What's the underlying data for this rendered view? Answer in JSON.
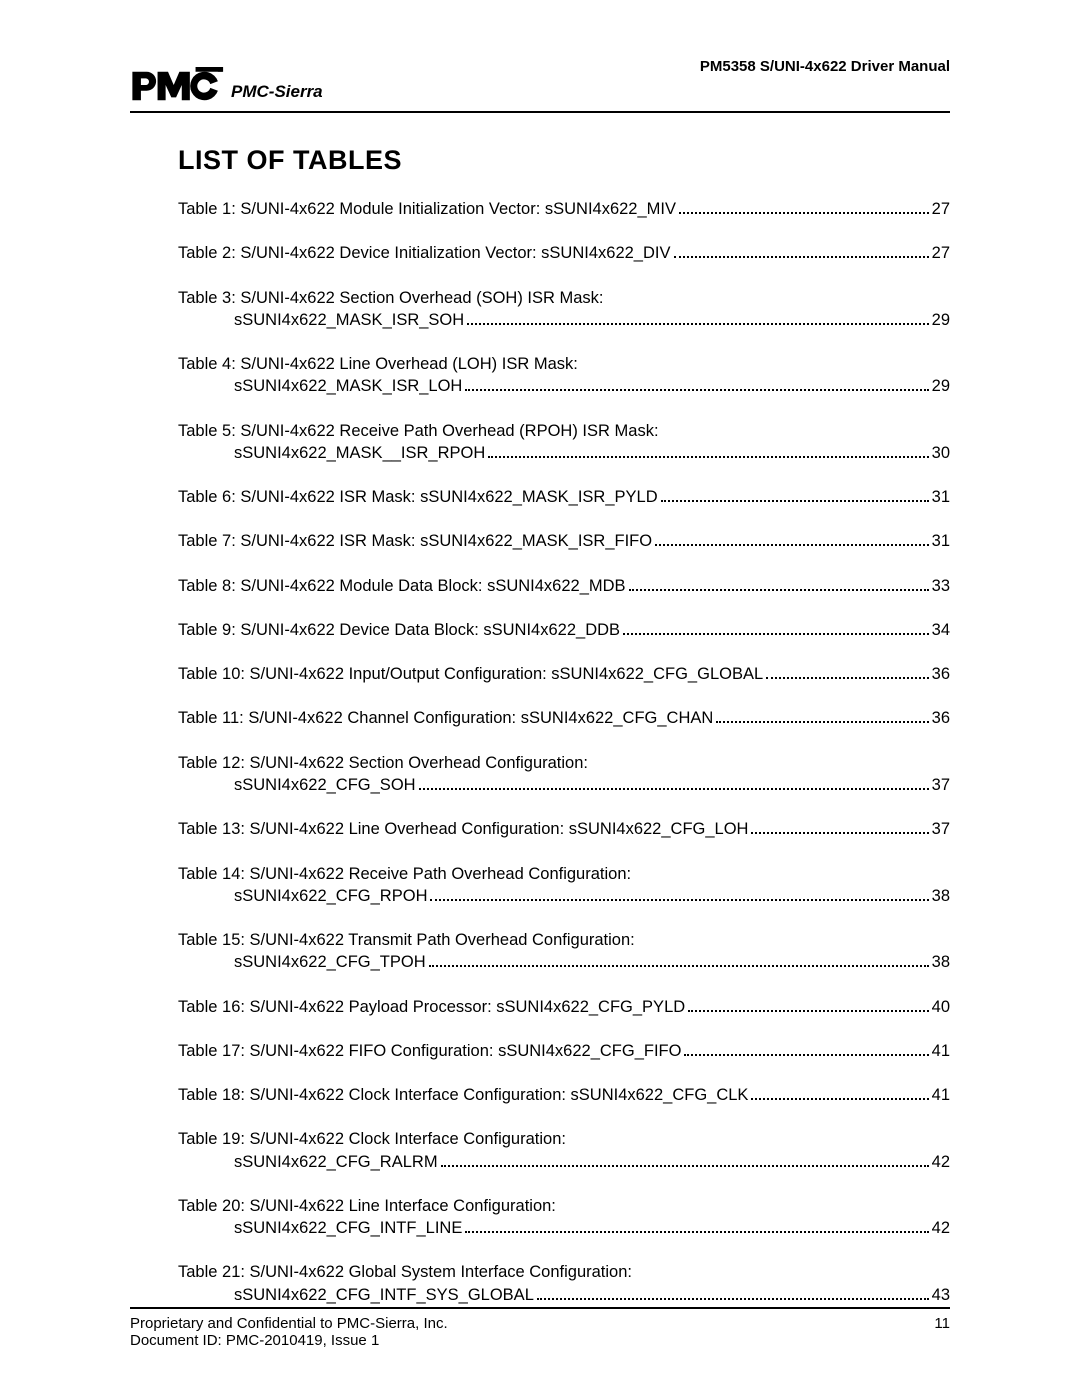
{
  "header": {
    "doc_title": "PM5358 S/UNI-4x622 Driver Manual",
    "logo_sub": "PMC-Sierra"
  },
  "title": "LIST OF TABLES",
  "toc": [
    {
      "label": "Table 1: S/UNI-4x622 Module Initialization Vector: sSUNI4x622_MIV",
      "page": "27"
    },
    {
      "label": "Table 2: S/UNI-4x622 Device Initialization Vector: sSUNI4x622_DIV",
      "page": "27"
    },
    {
      "label": "Table 3: S/UNI-4x622 Section Overhead (SOH) ISR Mask:",
      "sub": "sSUNI4x622_MASK_ISR_SOH",
      "page": "29"
    },
    {
      "label": "Table 4: S/UNI-4x622 Line Overhead (LOH) ISR Mask:",
      "sub": "sSUNI4x622_MASK_ISR_LOH",
      "page": "29"
    },
    {
      "label": "Table 5: S/UNI-4x622 Receive Path Overhead (RPOH) ISR Mask:",
      "sub": "sSUNI4x622_MASK__ISR_RPOH",
      "page": "30"
    },
    {
      "label": "Table 6: S/UNI-4x622 ISR Mask: sSUNI4x622_MASK_ISR_PYLD",
      "page": "31"
    },
    {
      "label": "Table 7: S/UNI-4x622 ISR Mask: sSUNI4x622_MASK_ISR_FIFO",
      "page": "31"
    },
    {
      "label": "Table 8: S/UNI-4x622 Module Data Block: sSUNI4x622_MDB",
      "page": "33"
    },
    {
      "label": "Table 9: S/UNI-4x622 Device Data Block: sSUNI4x622_DDB",
      "page": "34"
    },
    {
      "label": "Table 10: S/UNI-4x622 Input/Output Configuration: sSUNI4x622_CFG_GLOBAL",
      "page": "36"
    },
    {
      "label": "Table 11: S/UNI-4x622 Channel Configuration: sSUNI4x622_CFG_CHAN",
      "page": "36"
    },
    {
      "label": "Table 12: S/UNI-4x622 Section Overhead Configuration:",
      "sub": "sSUNI4x622_CFG_SOH",
      "page": "37"
    },
    {
      "label": "Table 13: S/UNI-4x622 Line Overhead Configuration: sSUNI4x622_CFG_LOH",
      "page": "37"
    },
    {
      "label": "Table 14: S/UNI-4x622 Receive Path Overhead Configuration:",
      "sub": "sSUNI4x622_CFG_RPOH",
      "page": "38"
    },
    {
      "label": "Table 15: S/UNI-4x622 Transmit Path  Overhead Configuration:",
      "sub": "sSUNI4x622_CFG_TPOH",
      "page": "38"
    },
    {
      "label": "Table 16: S/UNI-4x622 Payload Processor: sSUNI4x622_CFG_PYLD",
      "page": "40"
    },
    {
      "label": "Table 17: S/UNI-4x622 FIFO Configuration: sSUNI4x622_CFG_FIFO",
      "page": "41"
    },
    {
      "label": "Table 18: S/UNI-4x622 Clock Interface Configuration: sSUNI4x622_CFG_CLK",
      "page": "41"
    },
    {
      "label": "Table 19: S/UNI-4x622 Clock Interface Configuration:",
      "sub": "sSUNI4x622_CFG_RALRM",
      "page": "42"
    },
    {
      "label": "Table 20: S/UNI-4x622 Line Interface Configuration:",
      "sub": "sSUNI4x622_CFG_INTF_LINE",
      "page": "42"
    },
    {
      "label": "Table 21: S/UNI-4x622 Global System Interface Configuration:",
      "sub": "sSUNI4x622_CFG_INTF_SYS_GLOBAL",
      "page": "43"
    }
  ],
  "footer": {
    "line1": "Proprietary and Confidential to PMC-Sierra, Inc.",
    "line2": "Document ID: PMC-2010419, Issue 1",
    "page": "11"
  }
}
